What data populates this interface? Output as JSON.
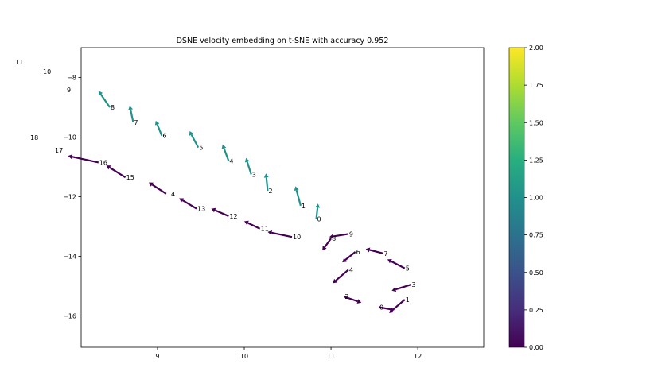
{
  "chart_data": {
    "type": "quiver",
    "title": "DSNE velocity embedding on t-SNE with accuracy 0.952",
    "xlabel": "",
    "ylabel": "",
    "xlim": [
      8.12,
      12.76
    ],
    "ylim": [
      -17.05,
      -7.0
    ],
    "xticks": [
      "9",
      "10",
      "11",
      "12"
    ],
    "yticks": [
      "−8",
      "−10",
      "−12",
      "−14",
      "−16"
    ],
    "colorbar": {
      "colormap": "viridis",
      "range": [
        0.0,
        2.0
      ],
      "ticks": [
        "0.00",
        "0.25",
        "0.50",
        "0.75",
        "1.00",
        "1.25",
        "1.50",
        "1.75",
        "2.00"
      ]
    },
    "colors": {
      "value_0": "#440154",
      "value_1": "#21918c"
    },
    "series": [
      {
        "value": 1,
        "arrows": [
          {
            "label": "8",
            "x": 8.45,
            "y": -9.0,
            "dx": -0.13,
            "dy": 0.55
          },
          {
            "label": "7",
            "x": 8.72,
            "y": -9.5,
            "dx": -0.04,
            "dy": 0.55
          },
          {
            "label": "6",
            "x": 9.05,
            "y": -9.95,
            "dx": -0.07,
            "dy": 0.5
          },
          {
            "label": "5",
            "x": 9.47,
            "y": -10.35,
            "dx": -0.1,
            "dy": 0.55
          },
          {
            "label": "4",
            "x": 9.82,
            "y": -10.8,
            "dx": -0.07,
            "dy": 0.55
          },
          {
            "label": "3",
            "x": 10.08,
            "y": -11.25,
            "dx": -0.06,
            "dy": 0.55
          },
          {
            "label": "2",
            "x": 10.27,
            "y": -11.8,
            "dx": -0.02,
            "dy": 0.58
          },
          {
            "label": "1",
            "x": 10.65,
            "y": -12.3,
            "dx": -0.06,
            "dy": 0.65
          },
          {
            "label": "0",
            "x": 10.83,
            "y": -12.75,
            "dx": 0.02,
            "dy": 0.52
          }
        ]
      },
      {
        "value": 0,
        "arrows": [
          {
            "label": "16",
            "x": 8.32,
            "y": -10.85,
            "dx": -0.35,
            "dy": 0.22
          },
          {
            "label": "15",
            "x": 8.63,
            "y": -11.35,
            "dx": -0.22,
            "dy": 0.4
          },
          {
            "label": "14",
            "x": 9.1,
            "y": -11.9,
            "dx": -0.2,
            "dy": 0.38
          },
          {
            "label": "13",
            "x": 9.45,
            "y": -12.4,
            "dx": -0.2,
            "dy": 0.35
          },
          {
            "label": "12",
            "x": 9.82,
            "y": -12.65,
            "dx": -0.2,
            "dy": 0.25
          },
          {
            "label": "11",
            "x": 10.18,
            "y": -13.07,
            "dx": -0.18,
            "dy": 0.25
          },
          {
            "label": "10",
            "x": 10.55,
            "y": -13.35,
            "dx": -0.28,
            "dy": 0.17
          },
          {
            "label": "9",
            "x": 11.2,
            "y": -13.25,
            "dx": -0.22,
            "dy": -0.1
          },
          {
            "label": "8",
            "x": 11.0,
            "y": -13.4,
            "dx": -0.1,
            "dy": -0.4
          },
          {
            "label": "7",
            "x": 11.6,
            "y": -13.9,
            "dx": -0.2,
            "dy": 0.15
          },
          {
            "label": "6",
            "x": 11.28,
            "y": -13.85,
            "dx": -0.15,
            "dy": -0.35
          },
          {
            "label": "5",
            "x": 11.85,
            "y": -14.4,
            "dx": -0.2,
            "dy": 0.3
          },
          {
            "label": "4",
            "x": 11.2,
            "y": -14.45,
            "dx": -0.18,
            "dy": -0.45
          },
          {
            "label": "3",
            "x": 11.92,
            "y": -14.95,
            "dx": -0.22,
            "dy": -0.2
          },
          {
            "label": "2",
            "x": 11.15,
            "y": -15.35,
            "dx": 0.2,
            "dy": -0.2
          },
          {
            "label": "0",
            "x": 11.55,
            "y": -15.7,
            "dx": 0.18,
            "dy": -0.1
          },
          {
            "label": "1",
            "x": 11.85,
            "y": -15.45,
            "dx": -0.18,
            "dy": -0.45
          }
        ]
      }
    ],
    "outside_labels": [
      "11",
      "10",
      "9",
      "18",
      "17"
    ]
  }
}
